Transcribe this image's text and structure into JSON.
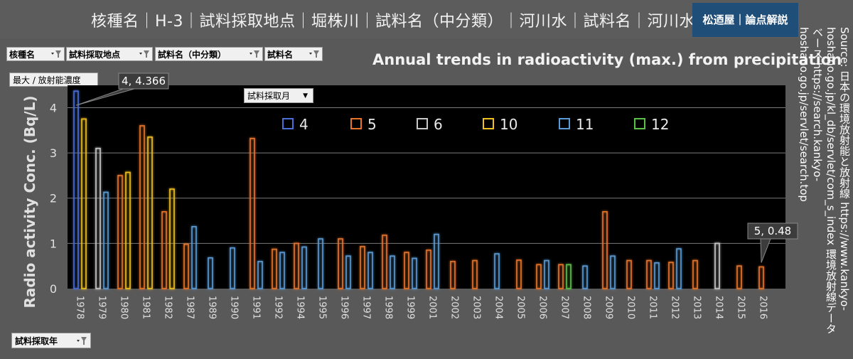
{
  "header": {
    "title": "核種名｜H-3｜試料採取地点｜堀株川｜試料名（中分類）｜河川水｜試料名｜河川水",
    "brand": "松迺屋｜論点解説"
  },
  "filters": {
    "nuclide": "核種名",
    "location": "試料採取地点",
    "category": "試料名（中分類）",
    "sample": "試料名",
    "month": "試料採取月",
    "year": "試料採取年",
    "unit": "最大 / 放射能濃度"
  },
  "source_text": "Source: 日本の環境放射能と放射線 https://www.kankyo-hoshano.go.jp/kl_db/servlet/com_s_index 環境放射線データベース https://search.kankyo-hoshano.go.jp/servlet/search.top",
  "colors": {
    "background": "#595959",
    "plot_background": "#000000",
    "brand_background": "#1f4e79",
    "month_4": "#4a6fd6",
    "month_5": "#e8742a",
    "month_6": "#c8c8c8",
    "month_10": "#f0c020",
    "month_11": "#5b9bd5",
    "month_12": "#5bbf4a"
  },
  "chart_data": {
    "type": "bar",
    "title": "Annual trends in radioactivity (max.) from precipitation",
    "ylabel": "Radio activity Conc. (Bq/L)",
    "xlabel": "",
    "ylim": [
      0,
      4.4
    ],
    "yticks": [
      0,
      1,
      2,
      3,
      4
    ],
    "grid": true,
    "legend_position": "top",
    "series_names": [
      "4",
      "5",
      "6",
      "10",
      "11",
      "12"
    ],
    "categories": [
      "1978",
      "1979",
      "1980",
      "1981",
      "1982",
      "1987",
      "1989",
      "1990",
      "1991",
      "1992",
      "1994",
      "1995",
      "1996",
      "1997",
      "1998",
      "1999",
      "2001",
      "2002",
      "2003",
      "2004",
      "2005",
      "2006",
      "2007",
      "2008",
      "2009",
      "2010",
      "2011",
      "2012",
      "2013",
      "2014",
      "2015",
      "2016"
    ],
    "points": [
      {
        "year": "1978",
        "month": "4",
        "value": 4.366
      },
      {
        "year": "1978",
        "month": "10",
        "value": 3.75
      },
      {
        "year": "1979",
        "month": "6",
        "value": 3.1
      },
      {
        "year": "1979",
        "month": "11",
        "value": 2.13
      },
      {
        "year": "1980",
        "month": "5",
        "value": 2.5
      },
      {
        "year": "1980",
        "month": "10",
        "value": 2.57
      },
      {
        "year": "1981",
        "month": "5",
        "value": 3.6
      },
      {
        "year": "1981",
        "month": "10",
        "value": 3.35
      },
      {
        "year": "1982",
        "month": "5",
        "value": 1.7
      },
      {
        "year": "1982",
        "month": "10",
        "value": 2.2
      },
      {
        "year": "1987",
        "month": "5",
        "value": 0.98
      },
      {
        "year": "1987",
        "month": "11",
        "value": 1.37
      },
      {
        "year": "1989",
        "month": "11",
        "value": 0.68
      },
      {
        "year": "1990",
        "month": "11",
        "value": 0.9
      },
      {
        "year": "1991",
        "month": "5",
        "value": 3.32
      },
      {
        "year": "1991",
        "month": "11",
        "value": 0.6
      },
      {
        "year": "1992",
        "month": "5",
        "value": 0.87
      },
      {
        "year": "1992",
        "month": "11",
        "value": 0.8
      },
      {
        "year": "1994",
        "month": "5",
        "value": 1.0
      },
      {
        "year": "1994",
        "month": "11",
        "value": 0.92
      },
      {
        "year": "1995",
        "month": "11",
        "value": 1.1
      },
      {
        "year": "1996",
        "month": "5",
        "value": 1.1
      },
      {
        "year": "1996",
        "month": "11",
        "value": 0.72
      },
      {
        "year": "1997",
        "month": "5",
        "value": 0.93
      },
      {
        "year": "1997",
        "month": "11",
        "value": 0.8
      },
      {
        "year": "1998",
        "month": "5",
        "value": 1.18
      },
      {
        "year": "1998",
        "month": "11",
        "value": 0.72
      },
      {
        "year": "1999",
        "month": "5",
        "value": 0.8
      },
      {
        "year": "1999",
        "month": "11",
        "value": 0.67
      },
      {
        "year": "2001",
        "month": "5",
        "value": 0.85
      },
      {
        "year": "2001",
        "month": "11",
        "value": 1.2
      },
      {
        "year": "2002",
        "month": "5",
        "value": 0.6
      },
      {
        "year": "2003",
        "month": "5",
        "value": 0.62
      },
      {
        "year": "2004",
        "month": "11",
        "value": 0.77
      },
      {
        "year": "2005",
        "month": "5",
        "value": 0.63
      },
      {
        "year": "2006",
        "month": "5",
        "value": 0.53
      },
      {
        "year": "2006",
        "month": "11",
        "value": 0.62
      },
      {
        "year": "2007",
        "month": "5",
        "value": 0.53
      },
      {
        "year": "2007",
        "month": "12",
        "value": 0.53
      },
      {
        "year": "2008",
        "month": "11",
        "value": 0.5
      },
      {
        "year": "2009",
        "month": "5",
        "value": 1.7
      },
      {
        "year": "2009",
        "month": "11",
        "value": 0.72
      },
      {
        "year": "2010",
        "month": "5",
        "value": 0.62
      },
      {
        "year": "2011",
        "month": "5",
        "value": 0.62
      },
      {
        "year": "2011",
        "month": "11",
        "value": 0.57
      },
      {
        "year": "2012",
        "month": "5",
        "value": 0.58
      },
      {
        "year": "2012",
        "month": "11",
        "value": 0.88
      },
      {
        "year": "2013",
        "month": "5",
        "value": 0.62
      },
      {
        "year": "2014",
        "month": "6",
        "value": 1.0
      },
      {
        "year": "2015",
        "month": "5",
        "value": 0.5
      },
      {
        "year": "2016",
        "month": "5",
        "value": 0.48
      }
    ],
    "annotations": [
      {
        "text": "4, 4.366",
        "year": "1978",
        "month": "4",
        "value": 4.366
      },
      {
        "text": "5, 0.48",
        "year": "2016",
        "month": "5",
        "value": 0.48
      }
    ]
  }
}
